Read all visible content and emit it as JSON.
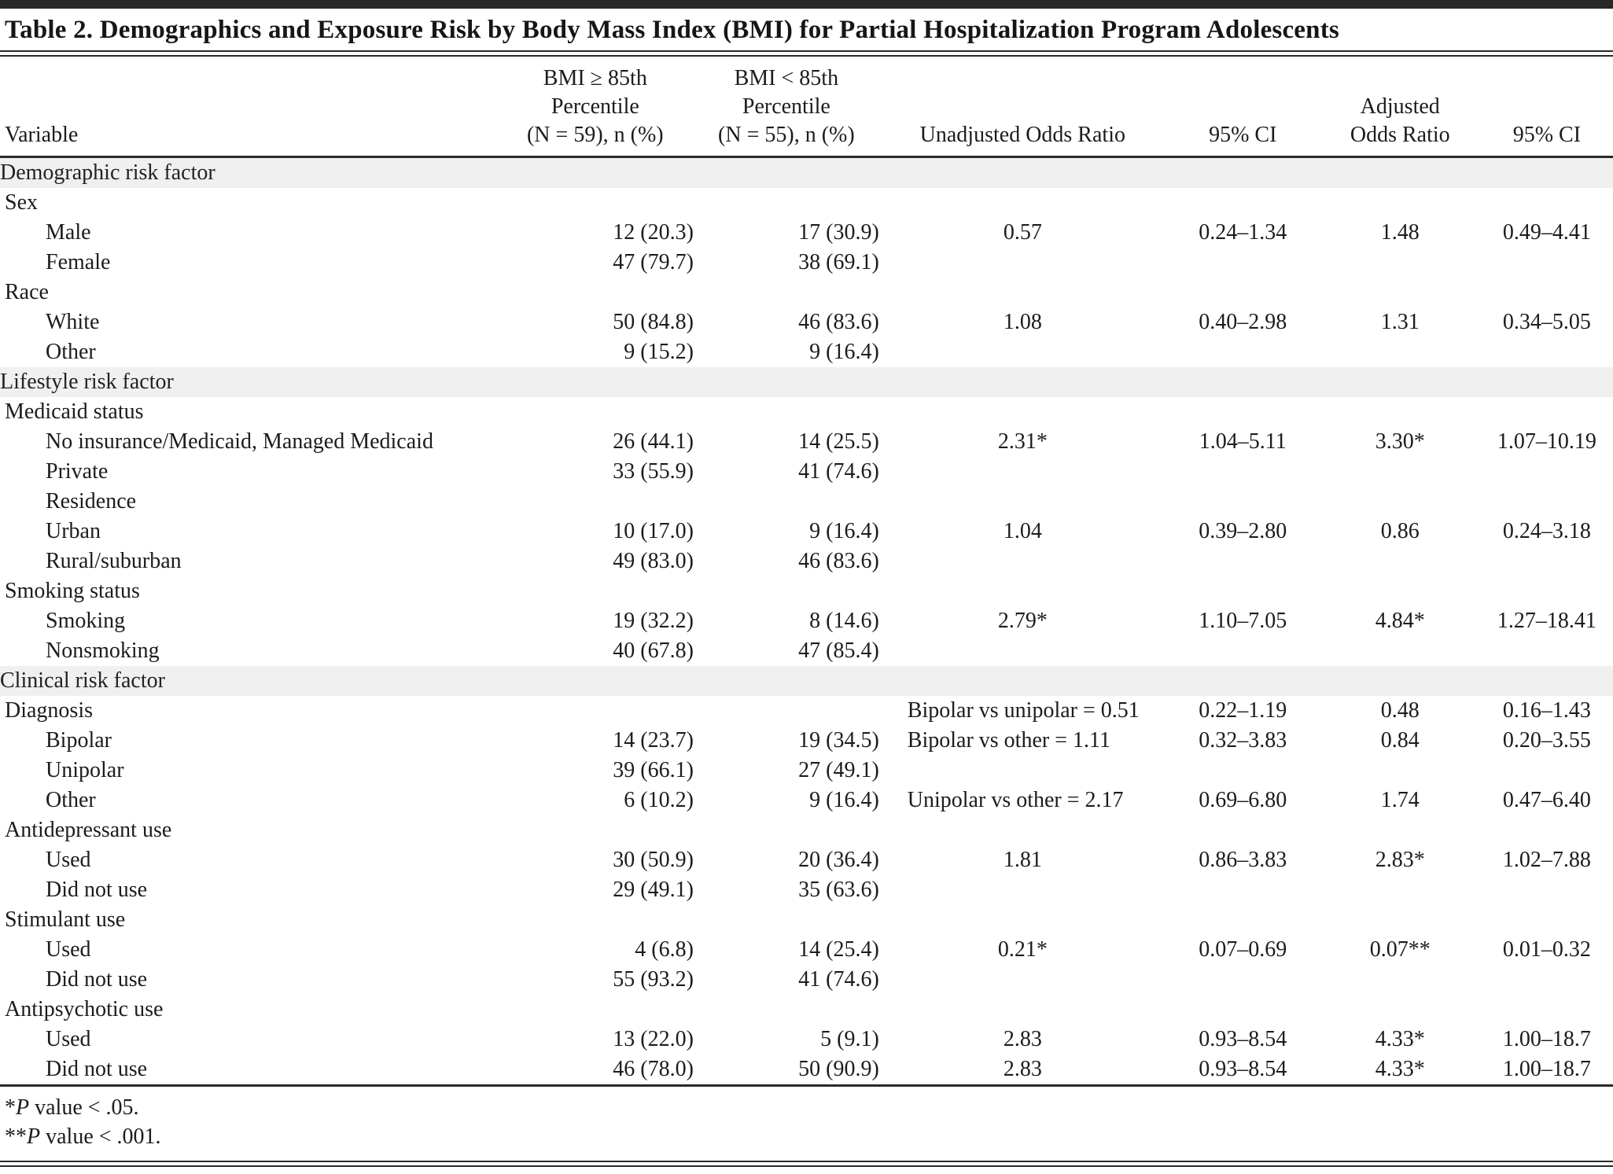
{
  "title": "Table 2. Demographics and Exposure Risk by Body Mass Index (BMI) for Partial Hospitalization Program Adolescents",
  "colors": {
    "section_band": "#f0f0f0",
    "rule": "#2a2a2a",
    "text": "#1c1c1c"
  },
  "columns": [
    {
      "label": "Variable"
    },
    {
      "label": "BMI ≥ 85th\nPercentile\n(N = 59), n (%)"
    },
    {
      "label": "BMI < 85th\nPercentile\n(N = 55), n (%)"
    },
    {
      "label": "Unadjusted Odds Ratio"
    },
    {
      "label": "95% CI"
    },
    {
      "label": "Adjusted\nOdds Ratio"
    },
    {
      "label": "95% CI"
    }
  ],
  "table": {
    "rows": [
      {
        "type": "section",
        "label": "Demographic risk factor"
      },
      {
        "type": "group",
        "label": "Sex"
      },
      {
        "type": "item",
        "label": "Male",
        "cells": [
          "12 (20.3)",
          "17 (30.9)",
          "0.57",
          "0.24–1.34",
          "1.48",
          "0.49–4.41"
        ]
      },
      {
        "type": "item",
        "label": "Female",
        "cells": [
          "47 (79.7)",
          "38 (69.1)",
          "",
          "",
          "",
          ""
        ]
      },
      {
        "type": "group",
        "label": "Race"
      },
      {
        "type": "item",
        "label": "White",
        "cells": [
          "50 (84.8)",
          "46 (83.6)",
          "1.08",
          "0.40–2.98",
          "1.31",
          "0.34–5.05"
        ]
      },
      {
        "type": "item",
        "label": "Other",
        "cells": [
          "9 (15.2)",
          "9 (16.4)",
          "",
          "",
          "",
          ""
        ]
      },
      {
        "type": "section",
        "label": "Lifestyle risk factor"
      },
      {
        "type": "group",
        "label": "Medicaid status"
      },
      {
        "type": "item",
        "label": "No insurance/Medicaid, Managed Medicaid",
        "cells": [
          "26 (44.1)",
          "14 (25.5)",
          "2.31*",
          "1.04–5.11",
          "3.30*",
          "1.07–10.19"
        ]
      },
      {
        "type": "item",
        "label": "Private",
        "cells": [
          "33 (55.9)",
          "41 (74.6)",
          "",
          "",
          "",
          ""
        ]
      },
      {
        "type": "item",
        "label": "Residence",
        "cells": [
          "",
          "",
          "",
          "",
          "",
          ""
        ]
      },
      {
        "type": "item",
        "label": "Urban",
        "cells": [
          "10 (17.0)",
          "9 (16.4)",
          "1.04",
          "0.39–2.80",
          "0.86",
          "0.24–3.18"
        ]
      },
      {
        "type": "item",
        "label": "Rural/suburban",
        "cells": [
          "49 (83.0)",
          "46 (83.6)",
          "",
          "",
          "",
          ""
        ]
      },
      {
        "type": "group",
        "label": "Smoking status"
      },
      {
        "type": "item",
        "label": "Smoking",
        "cells": [
          "19 (32.2)",
          "8 (14.6)",
          "2.79*",
          "1.10–7.05",
          "4.84*",
          "1.27–18.41"
        ]
      },
      {
        "type": "item",
        "label": "Nonsmoking",
        "cells": [
          "40 (67.8)",
          "47 (85.4)",
          "",
          "",
          "",
          ""
        ]
      },
      {
        "type": "section",
        "label": "Clinical risk factor"
      },
      {
        "type": "group",
        "label": "Diagnosis",
        "orLeft": true,
        "cells": [
          "",
          "",
          "Bipolar vs unipolar = 0.51",
          "0.22–1.19",
          "0.48",
          "0.16–1.43"
        ]
      },
      {
        "type": "item",
        "label": "Bipolar",
        "orLeft": true,
        "cells": [
          "14 (23.7)",
          "19 (34.5)",
          "Bipolar vs other = 1.11",
          "0.32–3.83",
          "0.84",
          "0.20–3.55"
        ]
      },
      {
        "type": "item",
        "label": "Unipolar",
        "cells": [
          "39 (66.1)",
          "27 (49.1)",
          "",
          "",
          "",
          ""
        ]
      },
      {
        "type": "item",
        "label": "Other",
        "orLeft": true,
        "cells": [
          "6 (10.2)",
          "9 (16.4)",
          "Unipolar vs other = 2.17",
          "0.69–6.80",
          "1.74",
          "0.47–6.40"
        ]
      },
      {
        "type": "group",
        "label": "Antidepressant use"
      },
      {
        "type": "item",
        "label": "Used",
        "cells": [
          "30 (50.9)",
          "20 (36.4)",
          "1.81",
          "0.86–3.83",
          "2.83*",
          "1.02–7.88"
        ]
      },
      {
        "type": "item",
        "label": "Did not use",
        "cells": [
          "29 (49.1)",
          "35 (63.6)",
          "",
          "",
          "",
          ""
        ]
      },
      {
        "type": "group",
        "label": "Stimulant use"
      },
      {
        "type": "item",
        "label": "Used",
        "cells": [
          "4 (6.8)",
          "14 (25.4)",
          "0.21*",
          "0.07–0.69",
          "0.07**",
          "0.01–0.32"
        ]
      },
      {
        "type": "item",
        "label": "Did not use",
        "cells": [
          "55 (93.2)",
          "41 (74.6)",
          "",
          "",
          "",
          ""
        ]
      },
      {
        "type": "group",
        "label": "Antipsychotic use"
      },
      {
        "type": "item",
        "label": "Used",
        "cells": [
          "13 (22.0)",
          "5 (9.1)",
          "2.83",
          "0.93–8.54",
          "4.33*",
          "1.00–18.7"
        ]
      },
      {
        "type": "item",
        "label": "Did not use",
        "cells": [
          "46 (78.0)",
          "50 (90.9)",
          "2.83",
          "0.93–8.54",
          "4.33*",
          "1.00–18.7"
        ]
      }
    ]
  },
  "footnotes": [
    {
      "marker": "*",
      "var": "P",
      "text": " value < .05."
    },
    {
      "marker": "**",
      "var": "P",
      "text": " value < .001."
    }
  ]
}
